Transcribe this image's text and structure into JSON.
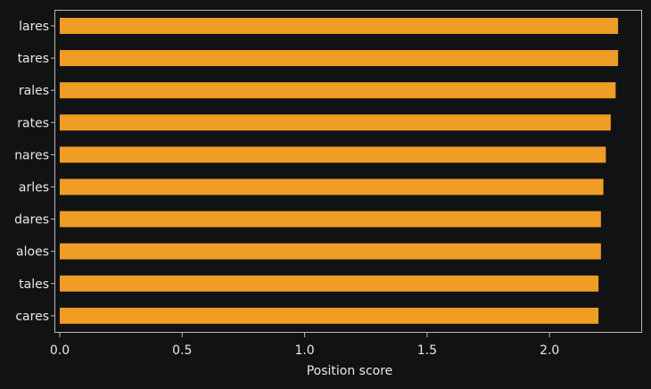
{
  "colors": {
    "background": "#111213",
    "bar": "#f09d25",
    "axis": "#b8b8b8",
    "text": "#e8e8e8"
  },
  "chart_data": {
    "type": "bar",
    "orientation": "horizontal",
    "categories": [
      "lares",
      "tares",
      "rales",
      "rates",
      "nares",
      "arles",
      "dares",
      "aloes",
      "tales",
      "cares"
    ],
    "values": [
      2.28,
      2.28,
      2.27,
      2.25,
      2.23,
      2.22,
      2.21,
      2.21,
      2.2,
      2.2
    ],
    "title": "",
    "xlabel": "Position score",
    "ylabel": "",
    "xlim": [
      0,
      2.4
    ],
    "xticks": [
      0.0,
      0.5,
      1.0,
      1.5,
      2.0
    ],
    "xtick_labels": [
      "0.0",
      "0.5",
      "1.0",
      "1.5",
      "2.0"
    ],
    "grid": false,
    "legend": "none"
  }
}
